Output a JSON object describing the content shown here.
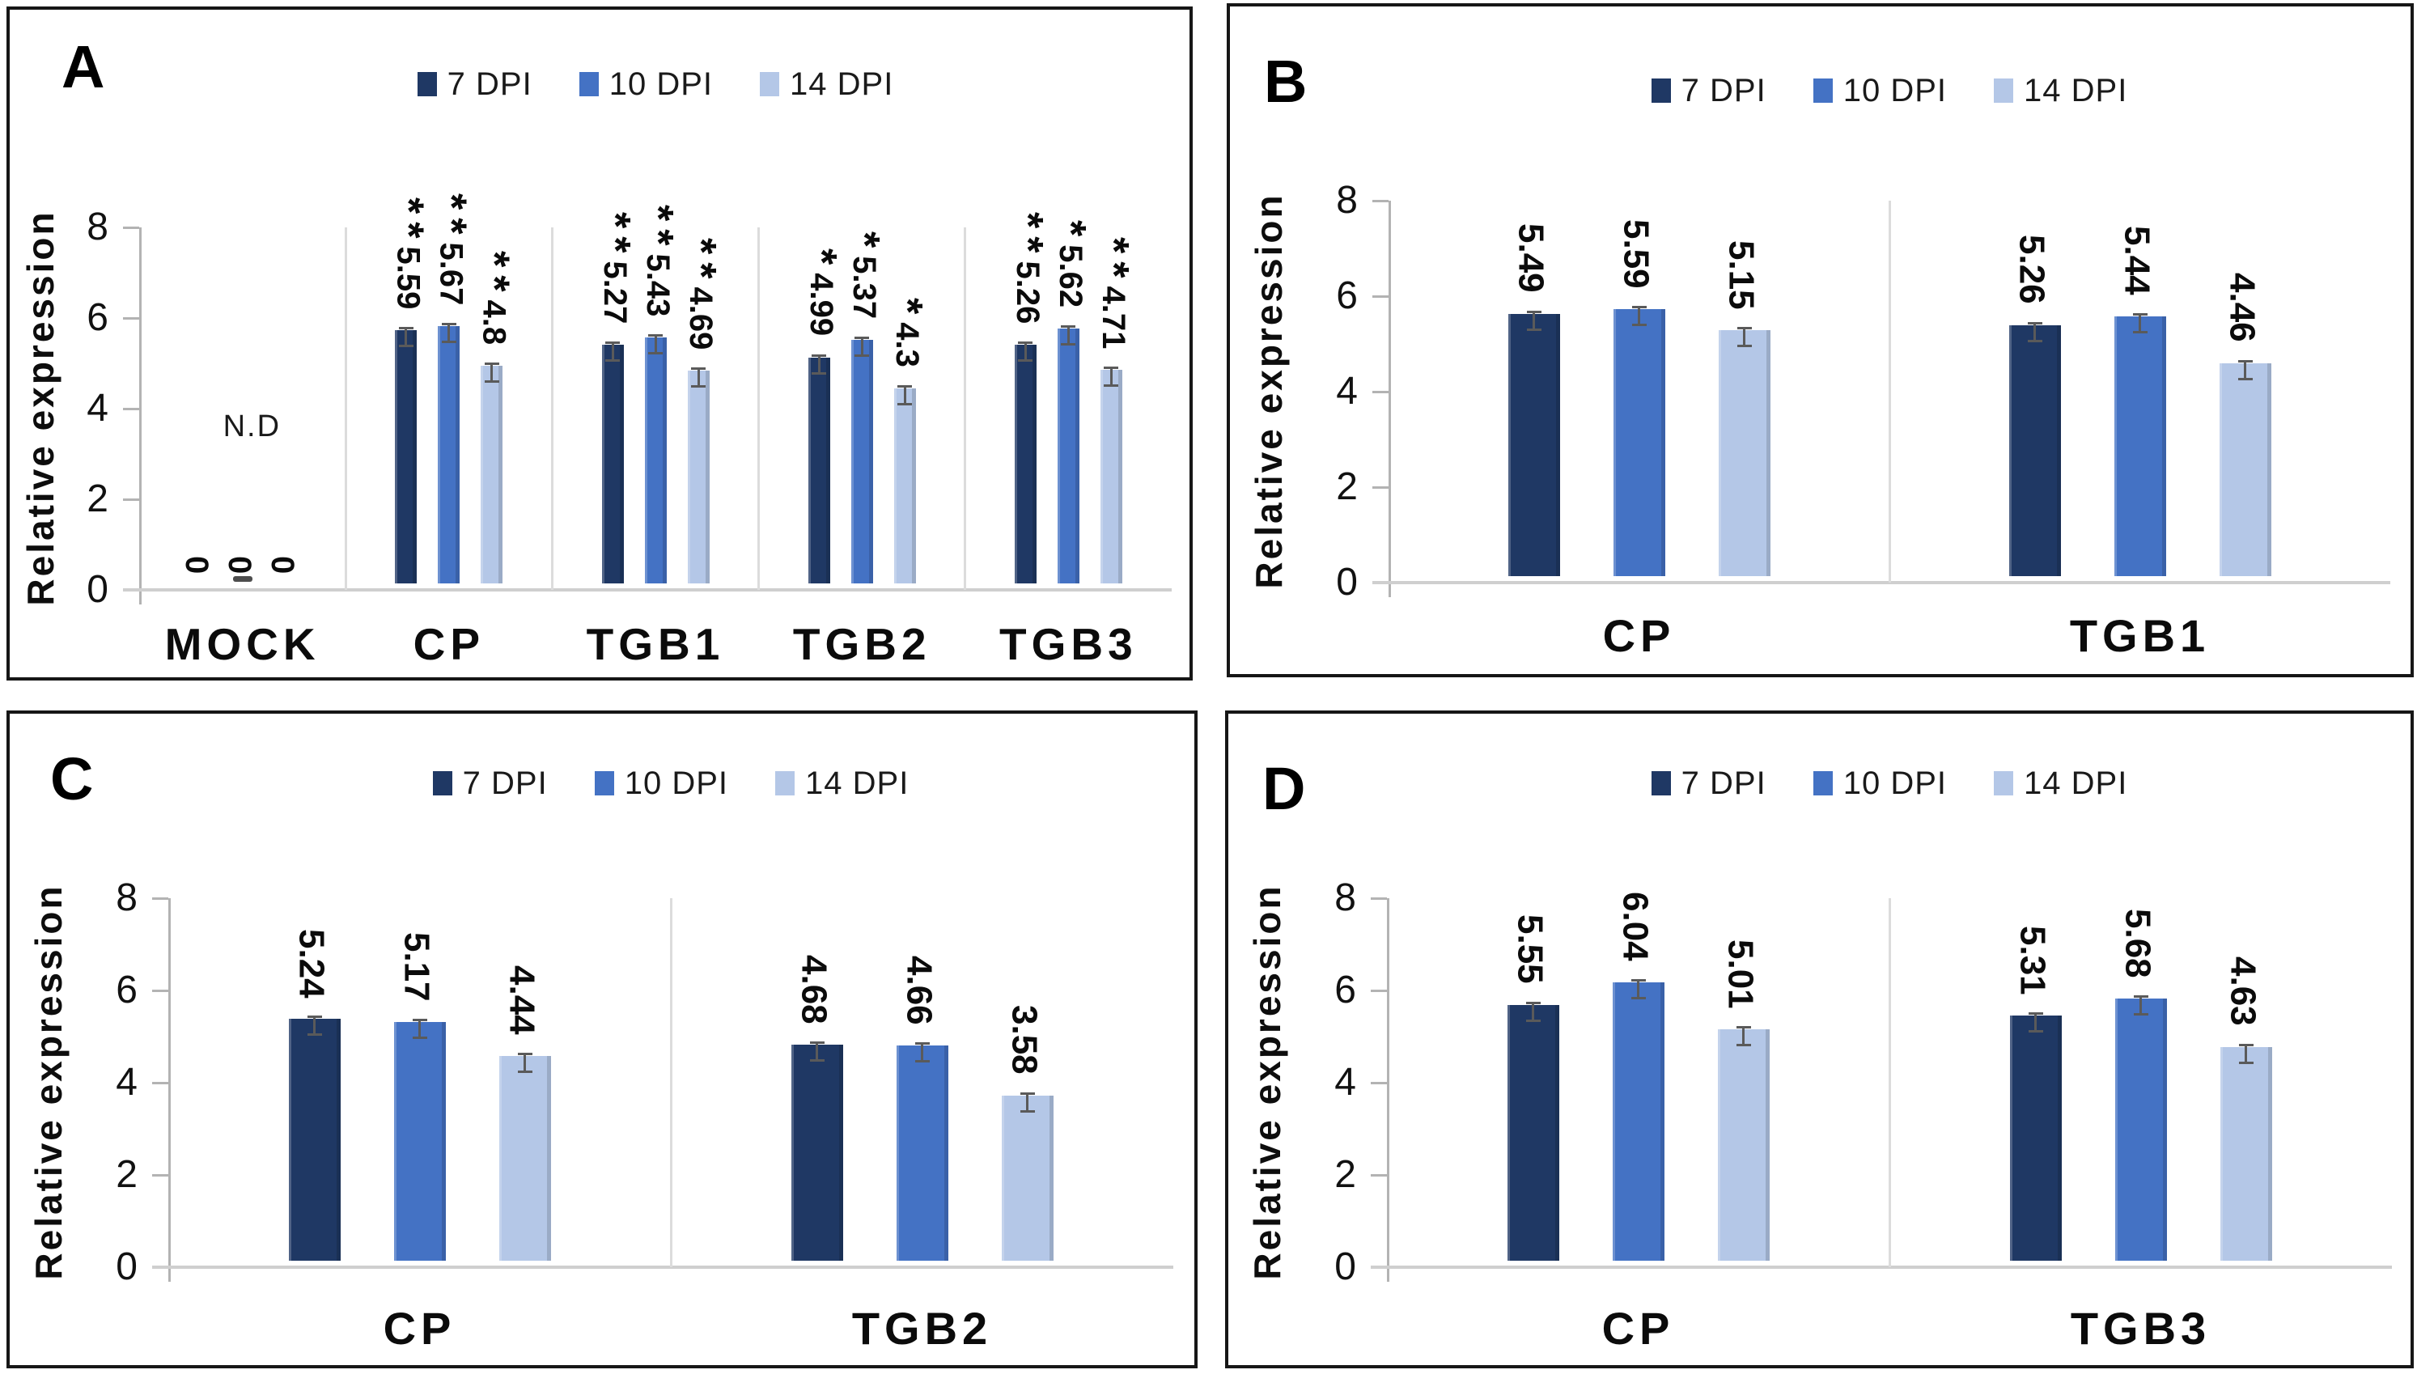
{
  "colors": {
    "series": [
      "#1f3864",
      "#4472c4",
      "#b4c7e7"
    ],
    "axis_line": "#b3b3b3",
    "baseline": "#cfcfcf",
    "separator": "#dcdcdc",
    "error_bar": "#5a5a5a",
    "panel_border": "#161616",
    "text": "#0b0b0b"
  },
  "legend": {
    "items": [
      "7 DPI",
      "10 DPI",
      "14 DPI"
    ],
    "position": "top-center"
  },
  "chart_data": [
    {
      "panel_label": "A",
      "type": "bar",
      "ylabel": "Relative expression",
      "ylim": [
        0,
        8
      ],
      "yticks": [
        "8",
        "6",
        "4",
        "2",
        "0"
      ],
      "ytick_values": [
        8,
        6,
        4,
        2,
        0
      ],
      "grid": false,
      "legend": [
        "7 DPI",
        "10 DPI",
        "14 DPI"
      ],
      "categories": [
        "MOCK",
        "CP",
        "TGB1",
        "TGB2",
        "TGB3"
      ],
      "series": [
        {
          "name": "7 DPI",
          "values": [
            0,
            5.59,
            5.27,
            4.99,
            5.26
          ],
          "labels": [
            "0",
            "5.59",
            "5.27",
            "4.99",
            "5.26"
          ],
          "significance": [
            "",
            "**",
            "**",
            "*",
            "**"
          ]
        },
        {
          "name": "10 DPI",
          "values": [
            0,
            5.67,
            5.43,
            5.37,
            5.62
          ],
          "labels": [
            "0",
            "5.67",
            "5.43",
            "5.37",
            "5.62"
          ],
          "significance": [
            "",
            "**",
            "**",
            "*",
            "*"
          ]
        },
        {
          "name": "14 DPI",
          "values": [
            0,
            4.8,
            4.69,
            4.3,
            4.71
          ],
          "labels": [
            "0",
            "4.8",
            "4.69",
            "4.3",
            "4.71"
          ],
          "significance": [
            "",
            "**",
            "**",
            "*",
            "**"
          ]
        }
      ],
      "error_bars": true,
      "annotations": [
        {
          "text": "N.D",
          "category_index": 0,
          "y_units": 3.6
        }
      ],
      "zero_marker": {
        "category_index": 0,
        "series_index": 1
      }
    },
    {
      "panel_label": "B",
      "type": "bar",
      "ylabel": "Relative expression",
      "ylim": [
        0,
        8
      ],
      "yticks": [
        "8",
        "6",
        "4",
        "2",
        "0"
      ],
      "ytick_values": [
        8,
        6,
        4,
        2,
        0
      ],
      "grid": false,
      "legend": [
        "7 DPI",
        "10 DPI",
        "14 DPI"
      ],
      "categories": [
        "CP",
        "TGB1"
      ],
      "series": [
        {
          "name": "7 DPI",
          "values": [
            5.49,
            5.26
          ],
          "labels": [
            "5.49",
            "5.26"
          ],
          "significance": [
            "",
            ""
          ]
        },
        {
          "name": "10 DPI",
          "values": [
            5.59,
            5.44
          ],
          "labels": [
            "5.59",
            "5.44"
          ],
          "significance": [
            "",
            ""
          ]
        },
        {
          "name": "14 DPI",
          "values": [
            5.15,
            4.46
          ],
          "labels": [
            "5.15",
            "4.46"
          ],
          "significance": [
            "",
            ""
          ]
        }
      ],
      "error_bars": true,
      "annotations": []
    },
    {
      "panel_label": "C",
      "type": "bar",
      "ylabel": "Relative expression",
      "ylim": [
        0,
        8
      ],
      "yticks": [
        "8",
        "6",
        "4",
        "2",
        "0"
      ],
      "ytick_values": [
        8,
        6,
        4,
        2,
        0
      ],
      "grid": false,
      "legend": [
        "7 DPI",
        "10 DPI",
        "14 DPI"
      ],
      "categories": [
        "CP",
        "TGB2"
      ],
      "series": [
        {
          "name": "7 DPI",
          "values": [
            5.24,
            4.68
          ],
          "labels": [
            "5.24",
            "4.68"
          ],
          "significance": [
            "",
            ""
          ]
        },
        {
          "name": "10 DPI",
          "values": [
            5.17,
            4.66
          ],
          "labels": [
            "5.17",
            "4.66"
          ],
          "significance": [
            "",
            ""
          ]
        },
        {
          "name": "14 DPI",
          "values": [
            4.44,
            3.58
          ],
          "labels": [
            "4.44",
            "3.58"
          ],
          "significance": [
            "",
            ""
          ]
        }
      ],
      "error_bars": true,
      "annotations": []
    },
    {
      "panel_label": "D",
      "type": "bar",
      "ylabel": "Relative expression",
      "ylim": [
        0,
        8
      ],
      "yticks": [
        "8",
        "6",
        "4",
        "2",
        "0"
      ],
      "ytick_values": [
        8,
        6,
        4,
        2,
        0
      ],
      "grid": false,
      "legend": [
        "7 DPI",
        "10 DPI",
        "14 DPI"
      ],
      "categories": [
        "CP",
        "TGB3"
      ],
      "series": [
        {
          "name": "7 DPI",
          "values": [
            5.55,
            5.31
          ],
          "labels": [
            "5.55",
            "5.31"
          ],
          "significance": [
            "",
            ""
          ]
        },
        {
          "name": "10 DPI",
          "values": [
            6.04,
            5.68
          ],
          "labels": [
            "6.04",
            "5.68"
          ],
          "significance": [
            "",
            ""
          ]
        },
        {
          "name": "14 DPI",
          "values": [
            5.01,
            4.63
          ],
          "labels": [
            "5.01",
            "4.63"
          ],
          "significance": [
            "",
            ""
          ]
        }
      ],
      "error_bars": true,
      "annotations": []
    }
  ]
}
